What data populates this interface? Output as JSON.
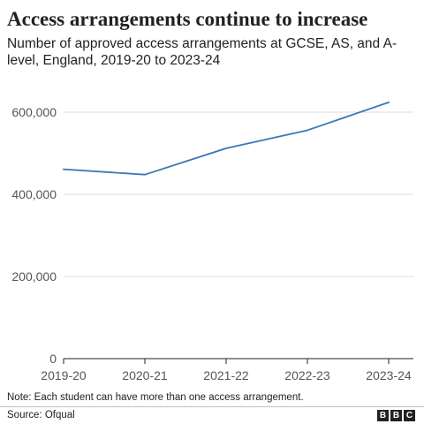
{
  "header": {
    "title": "Access arrangements continue to increase",
    "subtitle": "Number of approved access arrangements at GCSE, AS, and A-level, England, 2019-20 to 2023-24"
  },
  "footer": {
    "note": "Note: Each student can have more than one access arrangement.",
    "source": "Source: Ofqual",
    "logo_letters": [
      "B",
      "B",
      "C"
    ]
  },
  "colors": {
    "line": "#3a78b5",
    "grid": "#dddddd",
    "axis": "#222222",
    "text": "#222222",
    "tick_text": "#555555"
  },
  "chart_data": {
    "type": "line",
    "categories": [
      "2019-20",
      "2020-21",
      "2021-22",
      "2022-23",
      "2023-24"
    ],
    "series": [
      {
        "values": [
          461000,
          448000,
          512000,
          556000,
          624000
        ]
      }
    ],
    "ylim": [
      0,
      600000
    ],
    "yticks": [
      0,
      200000,
      400000,
      600000
    ],
    "ytick_labels": [
      "0",
      "200,000",
      "400,000",
      "600,000"
    ],
    "grid": true,
    "legend": "none"
  }
}
